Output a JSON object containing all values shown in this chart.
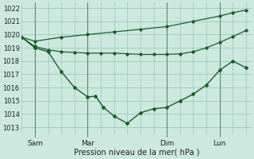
{
  "xlabel": "Pression niveau de la mer( hPa )",
  "ylim_min": 1012.5,
  "ylim_max": 1022.4,
  "yticks": [
    1013,
    1014,
    1015,
    1016,
    1017,
    1018,
    1019,
    1020,
    1021,
    1022
  ],
  "bg_color": "#cce8df",
  "grid_color": "#99ccbb",
  "line_color": "#1a5c2a",
  "vline_color": "#5a8a6a",
  "xtick_labels": [
    "Sam",
    "Mar",
    "Dim",
    "Lun"
  ],
  "xtick_positions": [
    1,
    3,
    6,
    8
  ],
  "vline_positions": [
    1,
    3,
    6,
    8
  ],
  "xlim_min": 0.5,
  "xlim_max": 9.2,
  "line1_x": [
    0.5,
    1.0,
    1.5,
    2.0,
    2.5,
    3.0,
    3.3,
    3.6,
    4.0,
    4.5,
    5.0,
    5.5,
    6.0,
    6.5,
    7.0,
    7.5,
    8.0,
    8.5,
    9.0
  ],
  "line1_y": [
    1019.8,
    1019.0,
    1018.7,
    1017.2,
    1016.0,
    1015.3,
    1015.35,
    1014.5,
    1013.85,
    1013.3,
    1014.1,
    1014.4,
    1014.5,
    1015.0,
    1015.5,
    1016.2,
    1017.3,
    1018.0,
    1017.5
  ],
  "line2_x": [
    0.5,
    1.0,
    1.5,
    2.0,
    2.5,
    3.0,
    3.5,
    4.0,
    4.5,
    5.0,
    5.5,
    6.0,
    6.5,
    7.0,
    7.5,
    8.0,
    8.5,
    9.0
  ],
  "line2_y": [
    1019.8,
    1019.1,
    1018.85,
    1018.7,
    1018.65,
    1018.6,
    1018.6,
    1018.6,
    1018.55,
    1018.5,
    1018.5,
    1018.5,
    1018.55,
    1018.7,
    1019.0,
    1019.4,
    1019.85,
    1020.3
  ],
  "line3_x": [
    0.5,
    1.0,
    2.0,
    3.0,
    4.0,
    5.0,
    6.0,
    7.0,
    8.0,
    8.5,
    9.0
  ],
  "line3_y": [
    1019.8,
    1019.5,
    1019.8,
    1020.0,
    1020.2,
    1020.4,
    1020.6,
    1021.0,
    1021.4,
    1021.65,
    1021.85
  ]
}
